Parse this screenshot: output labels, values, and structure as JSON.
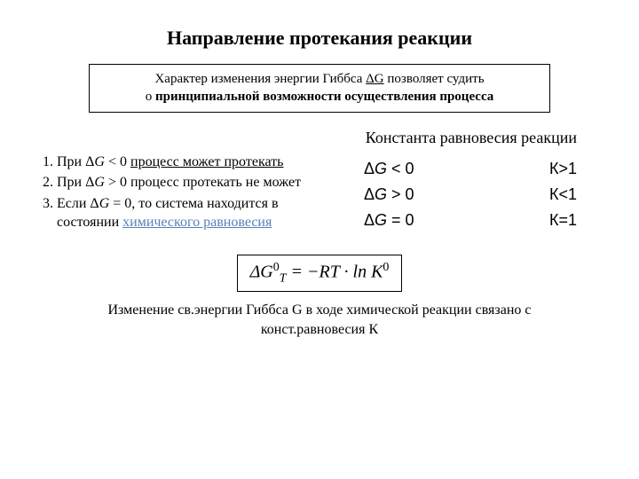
{
  "title": "Направление протекания реакции",
  "box": {
    "line1_pre": "Характер изменения энергии Гиббса ",
    "line1_dg": "ΔG",
    "line1_post": " позволяет судить",
    "line2_pre": "о ",
    "line2_bold": "принципиальной возможности осуществления процесса"
  },
  "const_label": "Константа равновесия реакции",
  "list": {
    "item1_pre": "При Δ",
    "item1_G": "G",
    "item1_mid": " < 0 ",
    "item1_link": "процесс может протекать",
    "item2_pre": "При Δ",
    "item2_G": "G",
    "item2_post": " > 0 процесс протекать не может",
    "item3_pre": "Если Δ",
    "item3_G": "G",
    "item3_mid": " = 0, то система находится в состоянии ",
    "item3_link": "химического равновесия"
  },
  "table": {
    "r1_left": "ΔG < 0",
    "r1_right": "К>1",
    "r2_left": "ΔG > 0",
    "r2_right": "К<1",
    "r3_left": "ΔG = 0",
    "r3_right": "К=1"
  },
  "formula": {
    "text": "ΔG",
    "sup1": "0",
    "subT": "T",
    "eq": " = −RT · ln K",
    "sup2": "0"
  },
  "caption": "Изменение св.энергии Гиббса G в ходе химической реакции связано с конст.равновесия К"
}
